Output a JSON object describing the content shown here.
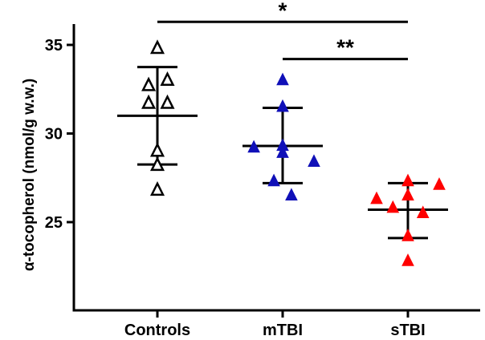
{
  "chart_data": {
    "type": "scatter",
    "title": "",
    "xlabel": "",
    "ylabel": "α-tocopherol (nmol/g w.w.)",
    "ylim": [
      20,
      35.5
    ],
    "yticks": [
      25,
      30,
      35
    ],
    "categories": [
      "Controls",
      "mTBI",
      "sTBI"
    ],
    "series": [
      {
        "category": "Controls",
        "color": "#000000",
        "marker": "open-triangle",
        "points": [
          {
            "offset": 0.0,
            "y": 34.8
          },
          {
            "offset": -0.07,
            "y": 32.7
          },
          {
            "offset": 0.08,
            "y": 33.0
          },
          {
            "offset": -0.07,
            "y": 31.7
          },
          {
            "offset": 0.08,
            "y": 31.7
          },
          {
            "offset": 0.0,
            "y": 29.0
          },
          {
            "offset": 0.0,
            "y": 28.2
          },
          {
            "offset": 0.0,
            "y": 26.8
          }
        ],
        "mean": 31.0,
        "sd_upper": 33.75,
        "sd_lower": 28.25
      },
      {
        "category": "mTBI",
        "color": "#1010b8",
        "marker": "filled-triangle",
        "points": [
          {
            "offset": 0.0,
            "y": 33.0
          },
          {
            "offset": 0.0,
            "y": 31.5
          },
          {
            "offset": -0.23,
            "y": 29.2
          },
          {
            "offset": 0.0,
            "y": 29.3
          },
          {
            "offset": 0.0,
            "y": 28.9
          },
          {
            "offset": 0.25,
            "y": 28.4
          },
          {
            "offset": -0.07,
            "y": 27.3
          },
          {
            "offset": 0.07,
            "y": 26.5
          }
        ],
        "mean": 29.3,
        "sd_upper": 31.45,
        "sd_lower": 27.2
      },
      {
        "category": "sTBI",
        "color": "#ff0000",
        "marker": "filled-triangle",
        "points": [
          {
            "offset": 0.0,
            "y": 27.3
          },
          {
            "offset": 0.25,
            "y": 27.1
          },
          {
            "offset": 0.0,
            "y": 26.5
          },
          {
            "offset": -0.25,
            "y": 26.3
          },
          {
            "offset": -0.12,
            "y": 25.8
          },
          {
            "offset": 0.12,
            "y": 25.5
          },
          {
            "offset": 0.0,
            "y": 24.2
          },
          {
            "offset": 0.0,
            "y": 22.8
          }
        ],
        "mean": 25.7,
        "sd_upper": 27.2,
        "sd_lower": 24.1
      }
    ],
    "significance": [
      {
        "from": "Controls",
        "to": "sTBI",
        "y": 36.3,
        "label": "*"
      },
      {
        "from": "mTBI",
        "to": "sTBI",
        "y": 34.2,
        "label": "**"
      }
    ]
  }
}
